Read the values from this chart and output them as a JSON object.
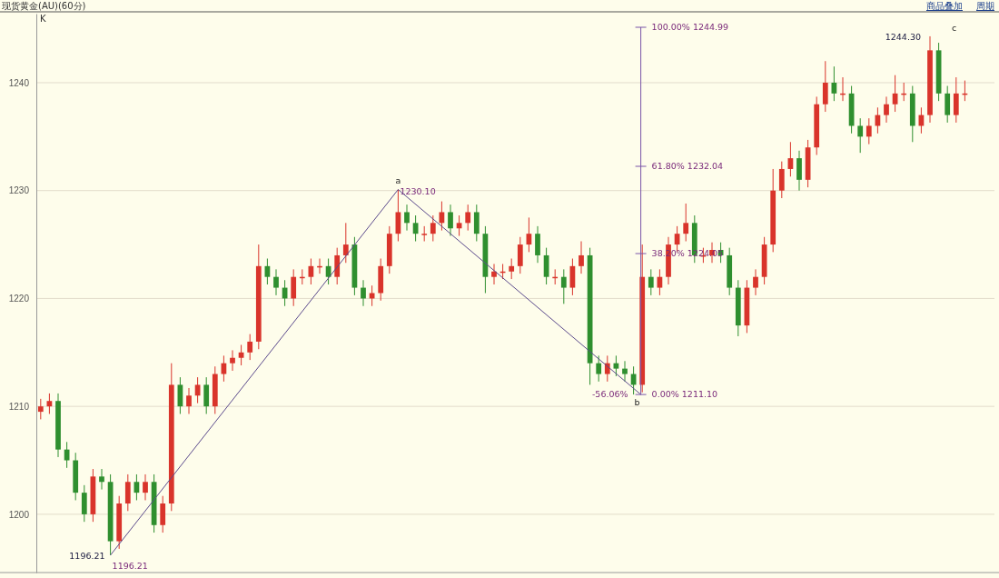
{
  "chart_data": {
    "type": "candlestick",
    "title": "现货黄金(AU)(60分)",
    "categories": [
      null,
      null,
      null,
      null,
      null,
      null,
      null,
      null,
      null,
      null,
      null,
      null,
      null,
      null,
      null,
      null,
      null,
      null,
      null,
      null,
      null,
      null,
      null,
      null,
      null,
      null,
      null,
      null,
      null,
      null,
      null,
      null,
      null,
      null,
      null,
      null,
      null,
      null,
      null,
      null,
      null,
      null,
      null,
      null,
      null,
      null,
      null,
      null,
      null,
      null,
      null,
      null,
      null,
      null,
      null,
      null,
      null,
      null,
      null,
      null,
      null,
      null,
      null,
      null,
      null,
      null,
      null,
      null,
      null,
      null,
      null,
      null,
      null,
      null,
      null,
      null,
      null,
      null,
      null,
      null,
      null,
      null,
      null,
      null,
      null,
      null,
      null,
      null,
      null,
      null,
      null,
      null,
      null,
      null,
      null,
      null,
      null,
      null,
      null,
      null,
      null,
      null,
      null,
      null,
      null,
      null,
      null
    ],
    "ohlc": [
      [
        1209.5,
        1210.7,
        1208.8,
        1210
      ],
      [
        1210,
        1211.2,
        1209.3,
        1210.5
      ],
      [
        1210.5,
        1211.2,
        1205.3,
        1206
      ],
      [
        1206,
        1206.7,
        1204.3,
        1205
      ],
      [
        1205,
        1205.7,
        1201.3,
        1202
      ],
      [
        1202,
        1202.7,
        1199.3,
        1200
      ],
      [
        1200,
        1204.2,
        1199.3,
        1203.5
      ],
      [
        1203.5,
        1204.2,
        1202.3,
        1203
      ],
      [
        1203,
        1203.7,
        1196.21,
        1197.5
      ],
      [
        1197.5,
        1201.7,
        1196.8,
        1201
      ],
      [
        1201,
        1203.7,
        1200.3,
        1203
      ],
      [
        1203,
        1203.7,
        1201.3,
        1202
      ],
      [
        1202,
        1203.7,
        1201.3,
        1203
      ],
      [
        1203,
        1203.7,
        1198.3,
        1199
      ],
      [
        1199,
        1201.7,
        1198.3,
        1201
      ],
      [
        1201,
        1214,
        1200.3,
        1212
      ],
      [
        1212,
        1212.7,
        1209.3,
        1210
      ],
      [
        1210,
        1211.7,
        1209.3,
        1211
      ],
      [
        1211,
        1212.7,
        1210.3,
        1212
      ],
      [
        1212,
        1212.7,
        1209.3,
        1210
      ],
      [
        1210,
        1213.7,
        1209.3,
        1213
      ],
      [
        1213,
        1214.7,
        1212.3,
        1214
      ],
      [
        1214,
        1215.2,
        1213.3,
        1214.5
      ],
      [
        1214.5,
        1215.7,
        1213.8,
        1215
      ],
      [
        1215,
        1216.7,
        1214.3,
        1216
      ],
      [
        1216,
        1225,
        1215.3,
        1223
      ],
      [
        1223,
        1223.7,
        1221.3,
        1222
      ],
      [
        1222,
        1222.7,
        1220.3,
        1221
      ],
      [
        1221,
        1221.7,
        1219.3,
        1220
      ],
      [
        1220,
        1222.7,
        1219.3,
        1222
      ],
      [
        1222,
        1222.7,
        1221.3,
        1222
      ],
      [
        1222,
        1223.7,
        1221.3,
        1223
      ],
      [
        1223,
        1223.7,
        1222.3,
        1223
      ],
      [
        1223,
        1223.7,
        1221.3,
        1222
      ],
      [
        1222,
        1224.7,
        1221.3,
        1224
      ],
      [
        1224,
        1227,
        1223.3,
        1225
      ],
      [
        1225,
        1225.7,
        1220.3,
        1221
      ],
      [
        1221,
        1221.7,
        1219.3,
        1220
      ],
      [
        1220,
        1221.2,
        1219.3,
        1220.5
      ],
      [
        1220.5,
        1223.7,
        1219.8,
        1223
      ],
      [
        1223,
        1226.7,
        1222.3,
        1226
      ],
      [
        1226,
        1230.1,
        1225.3,
        1228
      ],
      [
        1228,
        1228.7,
        1226.3,
        1227
      ],
      [
        1227,
        1227.7,
        1225.3,
        1226
      ],
      [
        1226,
        1226.7,
        1225.3,
        1226
      ],
      [
        1226,
        1227.7,
        1225.3,
        1227
      ],
      [
        1227,
        1229,
        1226.3,
        1228
      ],
      [
        1228,
        1228.7,
        1225.8,
        1226.5
      ],
      [
        1226.5,
        1227.7,
        1225.8,
        1227
      ],
      [
        1227,
        1228.7,
        1226.3,
        1228
      ],
      [
        1228,
        1228.7,
        1225.3,
        1226
      ],
      [
        1226,
        1226.7,
        1220.5,
        1222
      ],
      [
        1222,
        1223.2,
        1221.3,
        1222.5
      ],
      [
        1222.5,
        1223.2,
        1221.8,
        1222.5
      ],
      [
        1222.5,
        1223.7,
        1221.8,
        1223
      ],
      [
        1223,
        1225.7,
        1222.3,
        1225
      ],
      [
        1225,
        1227.5,
        1224.3,
        1226
      ],
      [
        1226,
        1226.7,
        1223.3,
        1224
      ],
      [
        1224,
        1224.7,
        1221.3,
        1222
      ],
      [
        1222,
        1222.7,
        1221.3,
        1222
      ],
      [
        1222,
        1222.7,
        1219.5,
        1221
      ],
      [
        1221,
        1223.7,
        1220.3,
        1223
      ],
      [
        1223,
        1225.3,
        1222.3,
        1224
      ],
      [
        1224,
        1224.7,
        1212,
        1214
      ],
      [
        1214,
        1214.7,
        1212.3,
        1213
      ],
      [
        1213,
        1214.7,
        1212.3,
        1214
      ],
      [
        1214,
        1214.7,
        1212.8,
        1213.5
      ],
      [
        1213.5,
        1214.2,
        1212.3,
        1213
      ],
      [
        1213,
        1213.7,
        1211.1,
        1212
      ],
      [
        1212,
        1225,
        1211.3,
        1222
      ],
      [
        1222,
        1222.7,
        1220.3,
        1221
      ],
      [
        1221,
        1222.7,
        1220.3,
        1222
      ],
      [
        1222,
        1225.7,
        1221.3,
        1225
      ],
      [
        1225,
        1226.7,
        1224.3,
        1226
      ],
      [
        1226,
        1228.8,
        1225.3,
        1227
      ],
      [
        1227,
        1227.7,
        1223.3,
        1224
      ],
      [
        1224,
        1224.7,
        1223.3,
        1224
      ],
      [
        1224,
        1225.2,
        1223.3,
        1224.5
      ],
      [
        1224.5,
        1225.2,
        1223.3,
        1224
      ],
      [
        1224,
        1224.7,
        1220.3,
        1221
      ],
      [
        1221,
        1221.7,
        1216.5,
        1217.5
      ],
      [
        1217.5,
        1221.7,
        1216.8,
        1221
      ],
      [
        1221,
        1222.7,
        1220.3,
        1222
      ],
      [
        1222,
        1225.7,
        1221.3,
        1225
      ],
      [
        1225,
        1232,
        1224.3,
        1230
      ],
      [
        1230,
        1232.7,
        1229.3,
        1232
      ],
      [
        1232,
        1234.5,
        1231.3,
        1233
      ],
      [
        1233,
        1233.7,
        1230,
        1231
      ],
      [
        1231,
        1234.7,
        1230.3,
        1234
      ],
      [
        1234,
        1238.7,
        1233.3,
        1238
      ],
      [
        1238,
        1242,
        1237.3,
        1240
      ],
      [
        1240,
        1241.5,
        1238.3,
        1239
      ],
      [
        1239,
        1240.5,
        1238.3,
        1239
      ],
      [
        1239,
        1239.7,
        1235.3,
        1236
      ],
      [
        1236,
        1236.7,
        1233.5,
        1235
      ],
      [
        1235,
        1236.7,
        1234.3,
        1236
      ],
      [
        1236,
        1237.7,
        1235.3,
        1237
      ],
      [
        1237,
        1238.7,
        1236.3,
        1238
      ],
      [
        1238,
        1240.7,
        1237.3,
        1239
      ],
      [
        1239,
        1240,
        1238.3,
        1239
      ],
      [
        1239,
        1239.7,
        1234.5,
        1236
      ],
      [
        1236,
        1237.7,
        1235.3,
        1237
      ],
      [
        1237,
        1244.3,
        1236.3,
        1243
      ],
      [
        1243,
        1243.7,
        1238.3,
        1239
      ],
      [
        1239,
        1239.7,
        1236.3,
        1237
      ],
      [
        1237,
        1240.5,
        1236.3,
        1239
      ],
      [
        1239,
        1240.2,
        1238.3,
        1239
      ]
    ],
    "colors": [
      "#d9342b",
      "#d9342b",
      "#2f8f2f",
      "#2f8f2f",
      "#2f8f2f",
      "#2f8f2f",
      "#d9342b",
      "#2f8f2f",
      "#2f8f2f",
      "#d9342b",
      "#d9342b",
      "#2f8f2f",
      "#d9342b",
      "#2f8f2f",
      "#d9342b",
      "#d9342b",
      "#2f8f2f",
      "#d9342b",
      "#d9342b",
      "#2f8f2f",
      "#d9342b",
      "#d9342b",
      "#d9342b",
      "#d9342b",
      "#d9342b",
      "#d9342b",
      "#2f8f2f",
      "#2f8f2f",
      "#2f8f2f",
      "#d9342b",
      "#d9342b",
      "#d9342b",
      "#d9342b",
      "#2f8f2f",
      "#d9342b",
      "#d9342b",
      "#2f8f2f",
      "#2f8f2f",
      "#d9342b",
      "#d9342b",
      "#d9342b",
      "#d9342b",
      "#2f8f2f",
      "#2f8f2f",
      "#d9342b",
      "#d9342b",
      "#d9342b",
      "#2f8f2f",
      "#d9342b",
      "#d9342b",
      "#2f8f2f",
      "#2f8f2f",
      "#d9342b",
      "#d9342b",
      "#d9342b",
      "#d9342b",
      "#d9342b",
      "#2f8f2f",
      "#2f8f2f",
      "#d9342b",
      "#2f8f2f",
      "#d9342b",
      "#d9342b",
      "#2f8f2f",
      "#2f8f2f",
      "#d9342b",
      "#2f8f2f",
      "#2f8f2f",
      "#2f8f2f",
      "#d9342b",
      "#2f8f2f",
      "#d9342b",
      "#d9342b",
      "#d9342b",
      "#d9342b",
      "#2f8f2f",
      "#d9342b",
      "#d9342b",
      "#2f8f2f",
      "#2f8f2f",
      "#2f8f2f",
      "#d9342b",
      "#d9342b",
      "#d9342b",
      "#d9342b",
      "#d9342b",
      "#d9342b",
      "#2f8f2f",
      "#d9342b",
      "#d9342b",
      "#d9342b",
      "#2f8f2f",
      "#d9342b",
      "#2f8f2f",
      "#2f8f2f",
      "#d9342b",
      "#d9342b",
      "#d9342b",
      "#d9342b",
      "#d9342b",
      "#2f8f2f",
      "#d9342b",
      "#d9342b",
      "#2f8f2f",
      "#2f8f2f",
      "#d9342b",
      "#d9342b"
    ],
    "ylim": [
      1194.6,
      1246.4
    ],
    "yticks": [
      1200,
      1210,
      1220,
      1230,
      1240
    ],
    "tick_labels": "y",
    "grid": "y",
    "annotations": [
      "K",
      "商品叠加",
      "周期",
      "1196.21",
      "1196.21",
      "a",
      "1230.10",
      "b",
      "-56.06%",
      "0.00%  1211.10",
      "38.20%  1224.05",
      "61.80%  1232.04",
      "100.00%  1244.99",
      "1244.30",
      "c"
    ]
  }
}
